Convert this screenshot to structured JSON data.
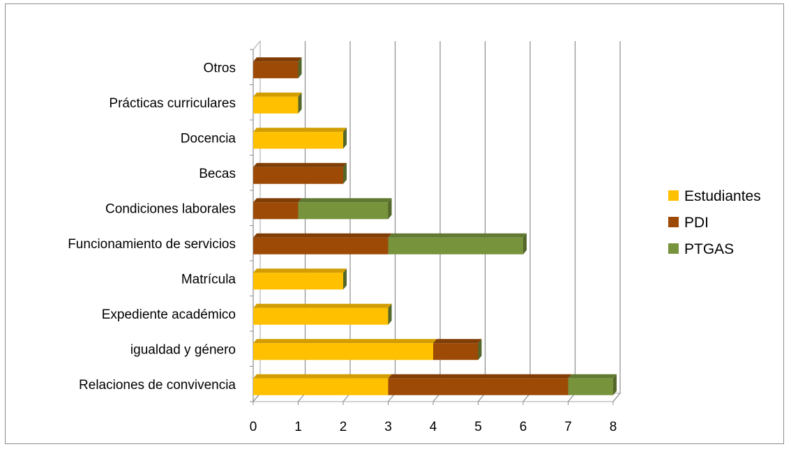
{
  "chart_data": {
    "type": "bar",
    "orientation": "horizontal",
    "stacked": true,
    "three_d": true,
    "categories": [
      "Relaciones de convivencia",
      "igualdad y género",
      "Expediente académico",
      "Matrícula",
      "Funcionamiento de servicios",
      "Condiciones laborales",
      "Becas",
      "Docencia",
      "Prácticas curriculares",
      "Otros"
    ],
    "series": [
      {
        "name": "Estudiantes",
        "color": "#FFC000",
        "values": [
          3,
          4,
          3,
          2,
          0,
          0,
          0,
          2,
          1,
          0
        ]
      },
      {
        "name": "PDI",
        "color": "#9C4A06",
        "values": [
          4,
          1,
          0,
          0,
          3,
          1,
          2,
          0,
          0,
          1
        ]
      },
      {
        "name": "PTGAS",
        "color": "#77933C",
        "values": [
          1,
          0,
          0,
          0,
          3,
          2,
          0,
          0,
          0,
          0
        ]
      }
    ],
    "xlim": [
      0,
      8
    ],
    "xticks": [
      "0",
      "1",
      "2",
      "3",
      "4",
      "5",
      "6",
      "7",
      "8"
    ],
    "grid": true,
    "legend_position": "right"
  }
}
